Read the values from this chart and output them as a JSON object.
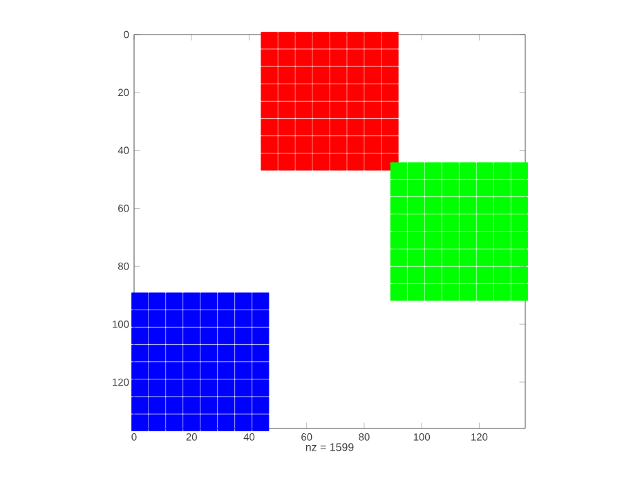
{
  "chart_data": {
    "type": "scatter",
    "xlabel": "nz = 1599",
    "xlim": [
      0,
      136
    ],
    "ylim": [
      136,
      0
    ],
    "xticks": [
      0,
      20,
      40,
      60,
      80,
      100,
      120
    ],
    "yticks": [
      0,
      20,
      40,
      60,
      80,
      100,
      120
    ],
    "marker": "square",
    "series": [
      {
        "color": "#ff0000",
        "x": [
          47,
          53,
          59,
          65,
          71,
          77,
          83,
          89,
          47,
          53,
          59,
          65,
          71,
          77,
          83,
          89,
          47,
          53,
          59,
          65,
          71,
          77,
          83,
          89,
          47,
          53,
          59,
          65,
          71,
          77,
          83,
          89,
          47,
          53,
          59,
          65,
          71,
          77,
          83,
          89,
          47,
          53,
          59,
          65,
          71,
          77,
          83,
          89,
          47,
          53,
          59,
          65,
          71,
          77,
          83,
          89,
          47,
          53,
          59,
          65,
          71,
          77,
          83,
          89
        ],
        "values": [
          2,
          2,
          2,
          2,
          2,
          2,
          2,
          2,
          8,
          8,
          8,
          8,
          8,
          8,
          8,
          8,
          14,
          14,
          14,
          14,
          14,
          14,
          14,
          14,
          20,
          20,
          20,
          20,
          20,
          20,
          20,
          20,
          26,
          26,
          26,
          26,
          26,
          26,
          26,
          26,
          32,
          32,
          32,
          32,
          32,
          32,
          32,
          32,
          38,
          38,
          38,
          38,
          38,
          38,
          38,
          38,
          44,
          44,
          44,
          44,
          44,
          44,
          44,
          44
        ]
      },
      {
        "color": "#00ff00",
        "x": [
          92,
          98,
          104,
          110,
          116,
          122,
          128,
          134,
          92,
          98,
          104,
          110,
          116,
          122,
          128,
          134,
          92,
          98,
          104,
          110,
          116,
          122,
          128,
          134,
          92,
          98,
          104,
          110,
          116,
          122,
          128,
          134,
          92,
          98,
          104,
          110,
          116,
          122,
          128,
          134,
          92,
          98,
          104,
          110,
          116,
          122,
          128,
          134,
          92,
          98,
          104,
          110,
          116,
          122,
          128,
          134,
          92,
          98,
          104,
          110,
          116,
          122,
          128,
          134
        ],
        "values": [
          47,
          47,
          47,
          47,
          47,
          47,
          47,
          47,
          53,
          53,
          53,
          53,
          53,
          53,
          53,
          53,
          59,
          59,
          59,
          59,
          59,
          59,
          59,
          59,
          65,
          65,
          65,
          65,
          65,
          65,
          65,
          65,
          71,
          71,
          71,
          71,
          71,
          71,
          71,
          71,
          77,
          77,
          77,
          77,
          77,
          77,
          77,
          77,
          83,
          83,
          83,
          83,
          83,
          83,
          83,
          83,
          89,
          89,
          89,
          89,
          89,
          89,
          89,
          89
        ]
      },
      {
        "color": "#0000ff",
        "x": [
          2,
          8,
          14,
          20,
          26,
          32,
          38,
          44,
          2,
          8,
          14,
          20,
          26,
          32,
          38,
          44,
          2,
          8,
          14,
          20,
          26,
          32,
          38,
          44,
          2,
          8,
          14,
          20,
          26,
          32,
          38,
          44,
          2,
          8,
          14,
          20,
          26,
          32,
          38,
          44,
          2,
          8,
          14,
          20,
          26,
          32,
          38,
          44,
          2,
          8,
          14,
          20,
          26,
          32,
          38,
          44,
          2,
          8,
          14,
          20,
          26,
          32,
          38,
          44
        ],
        "values": [
          92,
          92,
          92,
          92,
          92,
          92,
          92,
          92,
          98,
          98,
          98,
          98,
          98,
          98,
          98,
          98,
          104,
          104,
          104,
          104,
          104,
          104,
          104,
          104,
          110,
          110,
          110,
          110,
          110,
          110,
          110,
          110,
          116,
          116,
          116,
          116,
          116,
          116,
          116,
          116,
          122,
          122,
          122,
          122,
          122,
          122,
          122,
          122,
          128,
          128,
          128,
          128,
          128,
          128,
          128,
          128,
          134,
          134,
          134,
          134,
          134,
          134,
          134,
          134
        ]
      }
    ]
  }
}
